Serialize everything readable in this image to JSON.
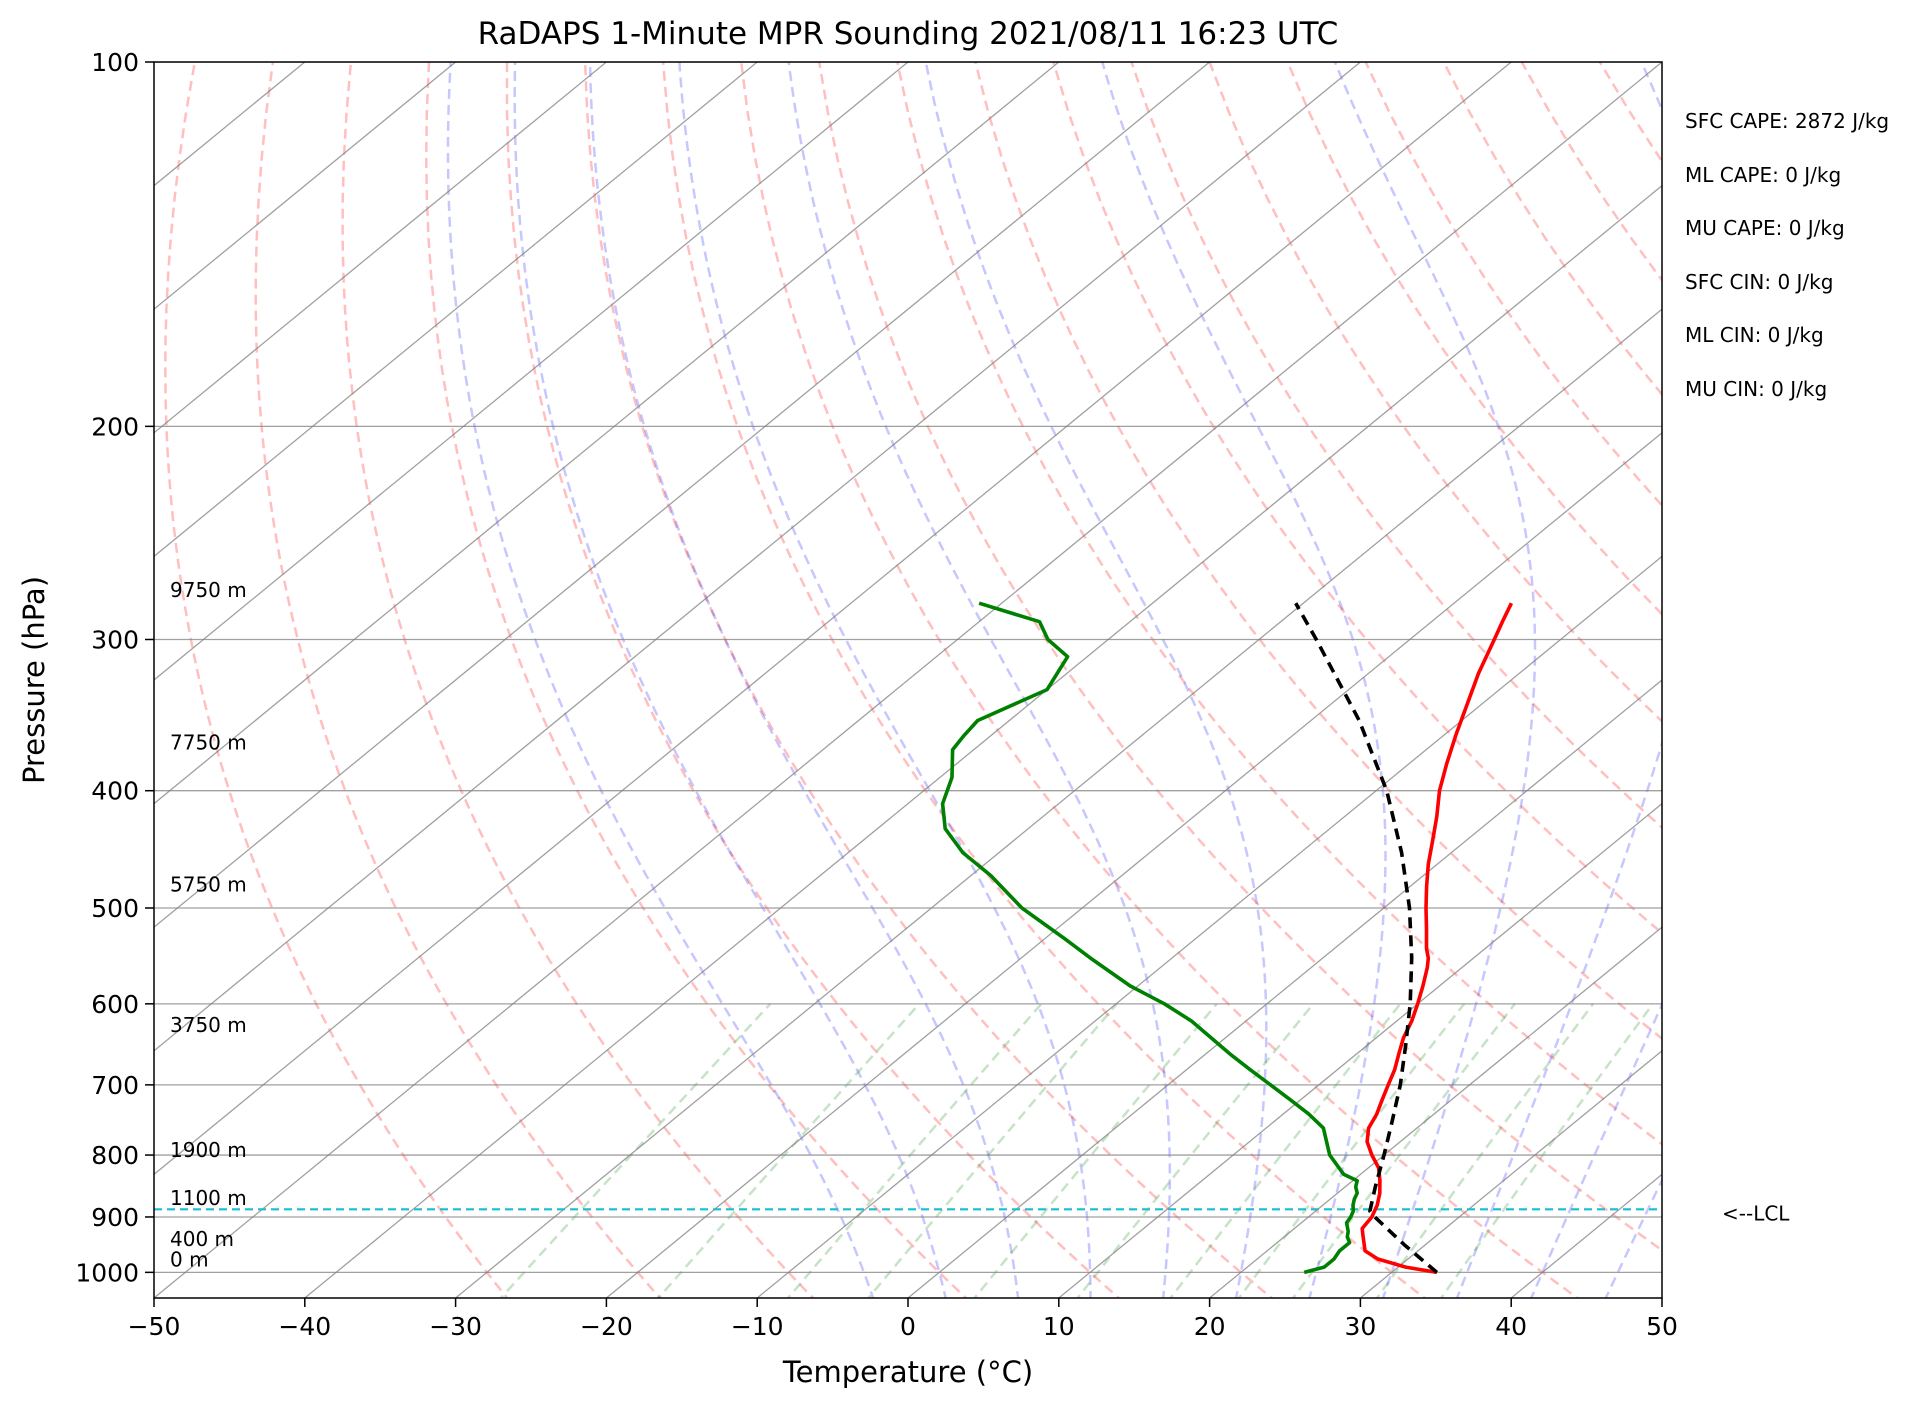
{
  "chart_data": {
    "type": "line",
    "subtype": "skew-t log-p",
    "title": "RaDAPS 1-Minute MPR Sounding 2021/08/11 16:23 UTC",
    "xlabel": "Temperature (°C)",
    "ylabel": "Pressure (hPa)",
    "xlim": [
      -50,
      50
    ],
    "ylim": [
      1050,
      100
    ],
    "y_scale": "log",
    "grid": true,
    "x_ticks": [
      -50,
      -40,
      -30,
      -20,
      -10,
      0,
      10,
      20,
      30,
      40,
      50
    ],
    "x_tick_labels": [
      "−50",
      "−40",
      "−30",
      "−20",
      "−10",
      "0",
      "10",
      "20",
      "30",
      "40",
      "50"
    ],
    "y_ticks": [
      1000,
      900,
      800,
      700,
      600,
      500,
      400,
      300,
      200,
      100
    ],
    "y_tick_labels": [
      "1000",
      "900",
      "800",
      "700",
      "600",
      "500",
      "400",
      "300",
      "200",
      "100"
    ],
    "series": [
      {
        "role": "temperature",
        "color": "#ff0000",
        "p": [
          1000,
          990,
          975,
          960,
          950,
          930,
          920,
          900,
          880,
          860,
          840,
          820,
          800,
          780,
          760,
          740,
          720,
          700,
          680,
          660,
          640,
          620,
          600,
          580,
          560,
          550,
          540,
          520,
          500,
          480,
          460,
          440,
          420,
          400,
          380,
          360,
          340,
          320,
          300,
          290,
          280
        ],
        "t": [
          33.0,
          30.5,
          28.0,
          26.5,
          26.0,
          25.0,
          24.5,
          24.2,
          23.6,
          22.8,
          21.8,
          20.7,
          19.2,
          17.8,
          16.8,
          16.2,
          15.4,
          14.6,
          13.8,
          12.8,
          11.8,
          11.0,
          10.0,
          8.9,
          7.7,
          7.0,
          6.1,
          4.5,
          2.8,
          1.1,
          -0.6,
          -2.2,
          -3.9,
          -5.8,
          -7.5,
          -9.2,
          -10.9,
          -12.7,
          -14.4,
          -15.3,
          -16.2
        ]
      },
      {
        "role": "dewpoint",
        "color": "#008000",
        "p": [
          1000,
          990,
          975,
          960,
          945,
          935,
          925,
          910,
          900,
          890,
          880,
          870,
          860,
          850,
          840,
          830,
          800,
          760,
          740,
          720,
          700,
          680,
          660,
          620,
          600,
          580,
          550,
          530,
          500,
          470,
          450,
          430,
          410,
          390,
          370,
          360,
          350,
          330,
          310,
          300,
          290,
          280
        ],
        "td": [
          24.2,
          25.1,
          25.1,
          24.8,
          24.8,
          24.2,
          23.8,
          23.0,
          22.8,
          22.5,
          22.0,
          21.6,
          21.3,
          20.7,
          20.3,
          18.9,
          16.4,
          13.8,
          11.7,
          9.3,
          6.8,
          4.2,
          1.6,
          -3.6,
          -6.8,
          -10.5,
          -15.4,
          -18.7,
          -24.0,
          -28.7,
          -32.4,
          -35.5,
          -37.7,
          -39.2,
          -41.4,
          -41.8,
          -42.1,
          -40.0,
          -41.3,
          -44.0,
          -46.0,
          -51.5
        ]
      },
      {
        "role": "parcel profile",
        "color": "#000000",
        "style": "dashed",
        "p": [
          1000,
          950,
          900,
          890,
          850,
          800,
          750,
          700,
          650,
          600,
          550,
          500,
          450,
          400,
          350,
          300,
          280
        ],
        "t": [
          33.0,
          28.7,
          24.4,
          23.6,
          22.0,
          20.0,
          17.8,
          15.4,
          12.6,
          9.5,
          5.9,
          1.7,
          -3.3,
          -9.3,
          -16.8,
          -26.2,
          -30.5
        ]
      }
    ],
    "reference_lines": {
      "isotherms": "solid gray, skewed",
      "isobars": "solid gray, horizontal",
      "dry_adiabats": "dashed light red",
      "moist_adiabats": "dashed light blue",
      "mixing_ratio_lines": "dashed light green",
      "lcl_line": {
        "p": 887,
        "color": "#17becf",
        "style": "dashed",
        "label": "<--LCL"
      }
    },
    "height_annotations": [
      {
        "label": "0 m",
        "p": 1000
      },
      {
        "label": "400 m",
        "p": 962
      },
      {
        "label": "1100 m",
        "p": 890
      },
      {
        "label": "1900 m",
        "p": 812
      },
      {
        "label": "3750 m",
        "p": 640
      },
      {
        "label": "5750 m",
        "p": 490
      },
      {
        "label": "7750 m",
        "p": 374
      },
      {
        "label": "9750 m",
        "p": 280
      }
    ],
    "annotations": [
      "SFC CAPE: 2872 J/kg",
      "ML CAPE: 0 J/kg",
      "MU CAPE: 0 J/kg",
      "SFC CIN: 0 J/kg",
      "ML CIN: 0 J/kg",
      "MU CIN: 0 J/kg"
    ]
  }
}
